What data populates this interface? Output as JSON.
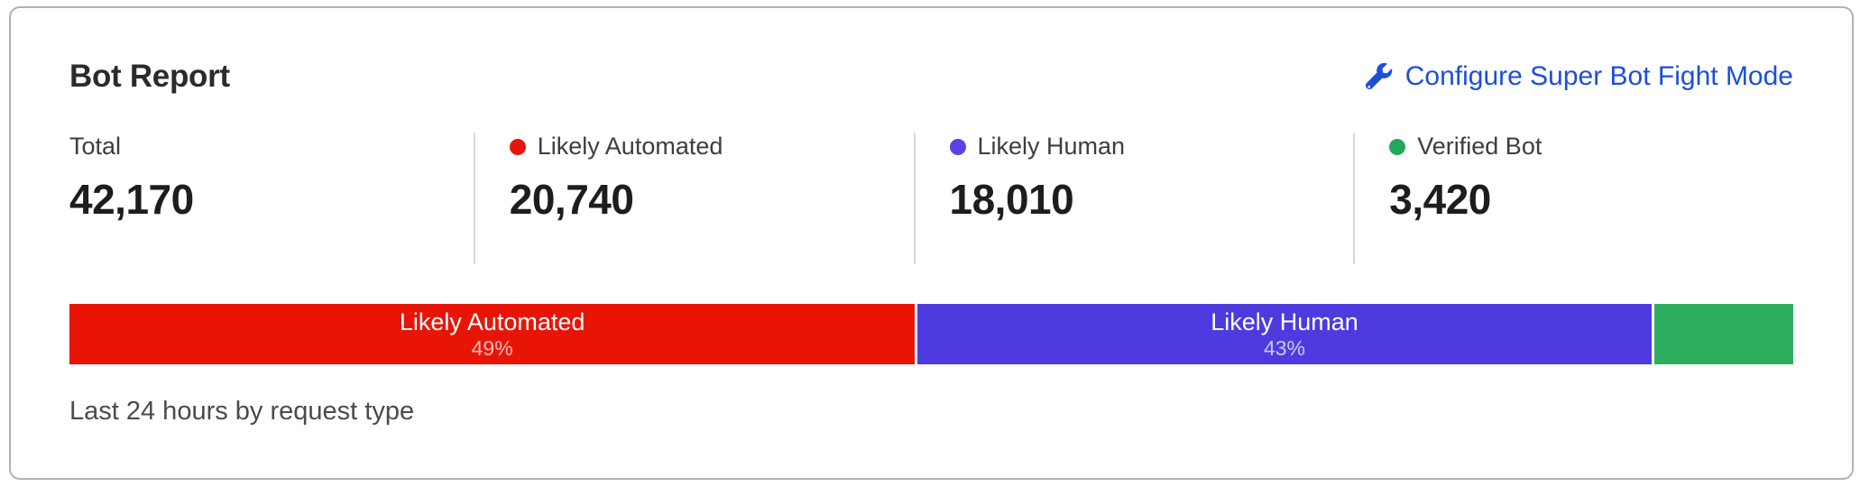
{
  "card": {
    "title": "Bot Report",
    "configure_link": {
      "label": "Configure Super Bot Fight Mode",
      "icon": "wrench-icon",
      "color": "#1b4fd8"
    },
    "footnote": "Last 24 hours by request type"
  },
  "stats": [
    {
      "label": "Total",
      "value": "42,170",
      "dot_color": null
    },
    {
      "label": "Likely Automated",
      "value": "20,740",
      "dot_color": "#e3160b"
    },
    {
      "label": "Likely Human",
      "value": "18,010",
      "dot_color": "#5a43e6"
    },
    {
      "label": "Verified Bot",
      "value": "3,420",
      "dot_color": "#22a85c"
    }
  ],
  "bar_segments": [
    {
      "name": "Likely Automated",
      "pct_label": "49%",
      "width_pct": 49.2,
      "color": "#e81507"
    },
    {
      "name": "Likely Human",
      "pct_label": "43%",
      "width_pct": 42.7,
      "color": "#4d3be0"
    },
    {
      "name": "",
      "pct_label": "",
      "width_pct": 8.1,
      "color": "#2dae5e"
    }
  ],
  "chart_data": {
    "type": "bar",
    "variant": "stacked-horizontal",
    "title": "Bot Report",
    "categories": [
      "Likely Automated",
      "Likely Human",
      "Verified Bot"
    ],
    "values": [
      20740,
      18010,
      3420
    ],
    "total": 42170,
    "percent_labels": [
      "49%",
      "43%",
      null
    ],
    "colors": [
      "#e81507",
      "#4d3be0",
      "#2dae5e"
    ],
    "note": "Last 24 hours by request type",
    "legend_position": "top-stats-row"
  }
}
